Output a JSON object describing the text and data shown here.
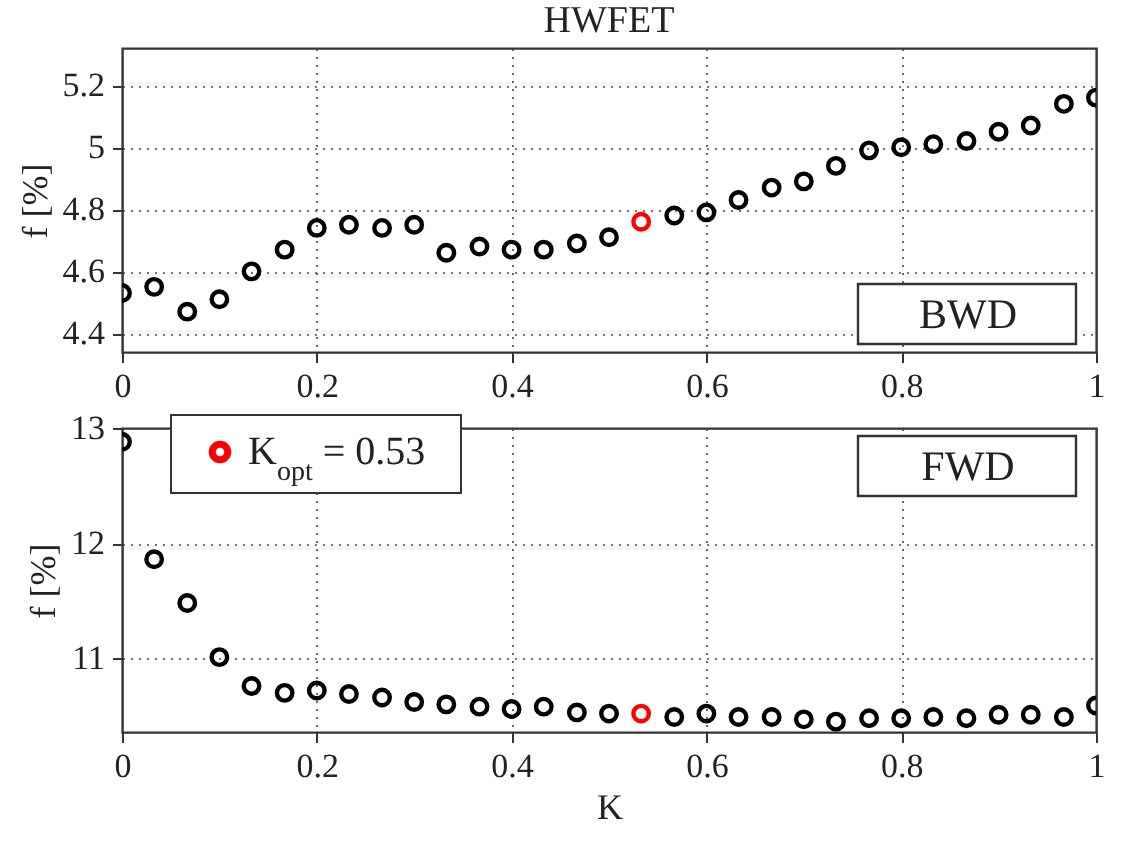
{
  "chart_data": [
    {
      "type": "scatter",
      "title": "HWFET",
      "ylabel": "f [%]",
      "xlim": [
        0,
        1
      ],
      "xticks": [
        0,
        0.2,
        0.4,
        0.6,
        0.8,
        1
      ],
      "ylim": [
        4.34,
        5.32
      ],
      "yticks": [
        4.4,
        4.6,
        4.8,
        5,
        5.2
      ],
      "grid": true,
      "marker": "circle",
      "annotations": [
        "BWD"
      ],
      "series": [
        {
          "color": "#000000",
          "x": [
            0,
            0.033,
            0.067,
            0.1,
            0.133,
            0.167,
            0.2,
            0.233,
            0.267,
            0.3,
            0.333,
            0.367,
            0.4,
            0.433,
            0.467,
            0.5,
            0.533,
            0.567,
            0.6,
            0.633,
            0.667,
            0.7,
            0.733,
            0.767,
            0.8,
            0.833,
            0.867,
            0.9,
            0.933,
            0.967,
            1
          ],
          "values": [
            4.53,
            4.55,
            4.47,
            4.51,
            4.6,
            4.67,
            4.74,
            4.75,
            4.74,
            4.75,
            4.66,
            4.68,
            4.67,
            4.67,
            4.69,
            4.71,
            null,
            4.78,
            4.79,
            4.83,
            4.87,
            4.89,
            4.94,
            4.99,
            5.0,
            5.01,
            5.02,
            5.05,
            5.07,
            5.14,
            5.16
          ]
        },
        {
          "color": "#ff0000",
          "x": [
            0.533
          ],
          "values": [
            4.76
          ]
        }
      ]
    },
    {
      "type": "scatter",
      "xlabel": "K",
      "ylabel": "f [%]",
      "xlim": [
        0,
        1
      ],
      "xticks": [
        0,
        0.2,
        0.4,
        0.6,
        0.8,
        1
      ],
      "ylim": [
        10.36,
        13
      ],
      "yticks": [
        11,
        12,
        13
      ],
      "grid": true,
      "marker": "circle",
      "legend": "top left",
      "annotations": [
        "FWD"
      ],
      "series": [
        {
          "color": "#000000",
          "x": [
            0,
            0.033,
            0.067,
            0.1,
            0.133,
            0.167,
            0.2,
            0.233,
            0.267,
            0.3,
            0.333,
            0.367,
            0.4,
            0.433,
            0.467,
            0.5,
            0.533,
            0.567,
            0.6,
            0.633,
            0.667,
            0.7,
            0.733,
            0.767,
            0.8,
            0.833,
            0.867,
            0.9,
            0.933,
            0.967,
            1
          ],
          "values": [
            12.88,
            11.86,
            11.48,
            11.01,
            10.76,
            10.7,
            10.72,
            10.69,
            10.66,
            10.62,
            10.6,
            10.58,
            10.56,
            10.58,
            10.53,
            10.52,
            null,
            10.49,
            10.52,
            10.49,
            10.49,
            10.47,
            10.45,
            10.48,
            10.48,
            10.49,
            10.48,
            10.51,
            10.51,
            10.49,
            10.59
          ]
        },
        {
          "name": "K$_{opt}$ = 0.53",
          "color": "#ff0000",
          "x": [
            0.533
          ],
          "values": [
            10.52
          ]
        }
      ]
    }
  ]
}
